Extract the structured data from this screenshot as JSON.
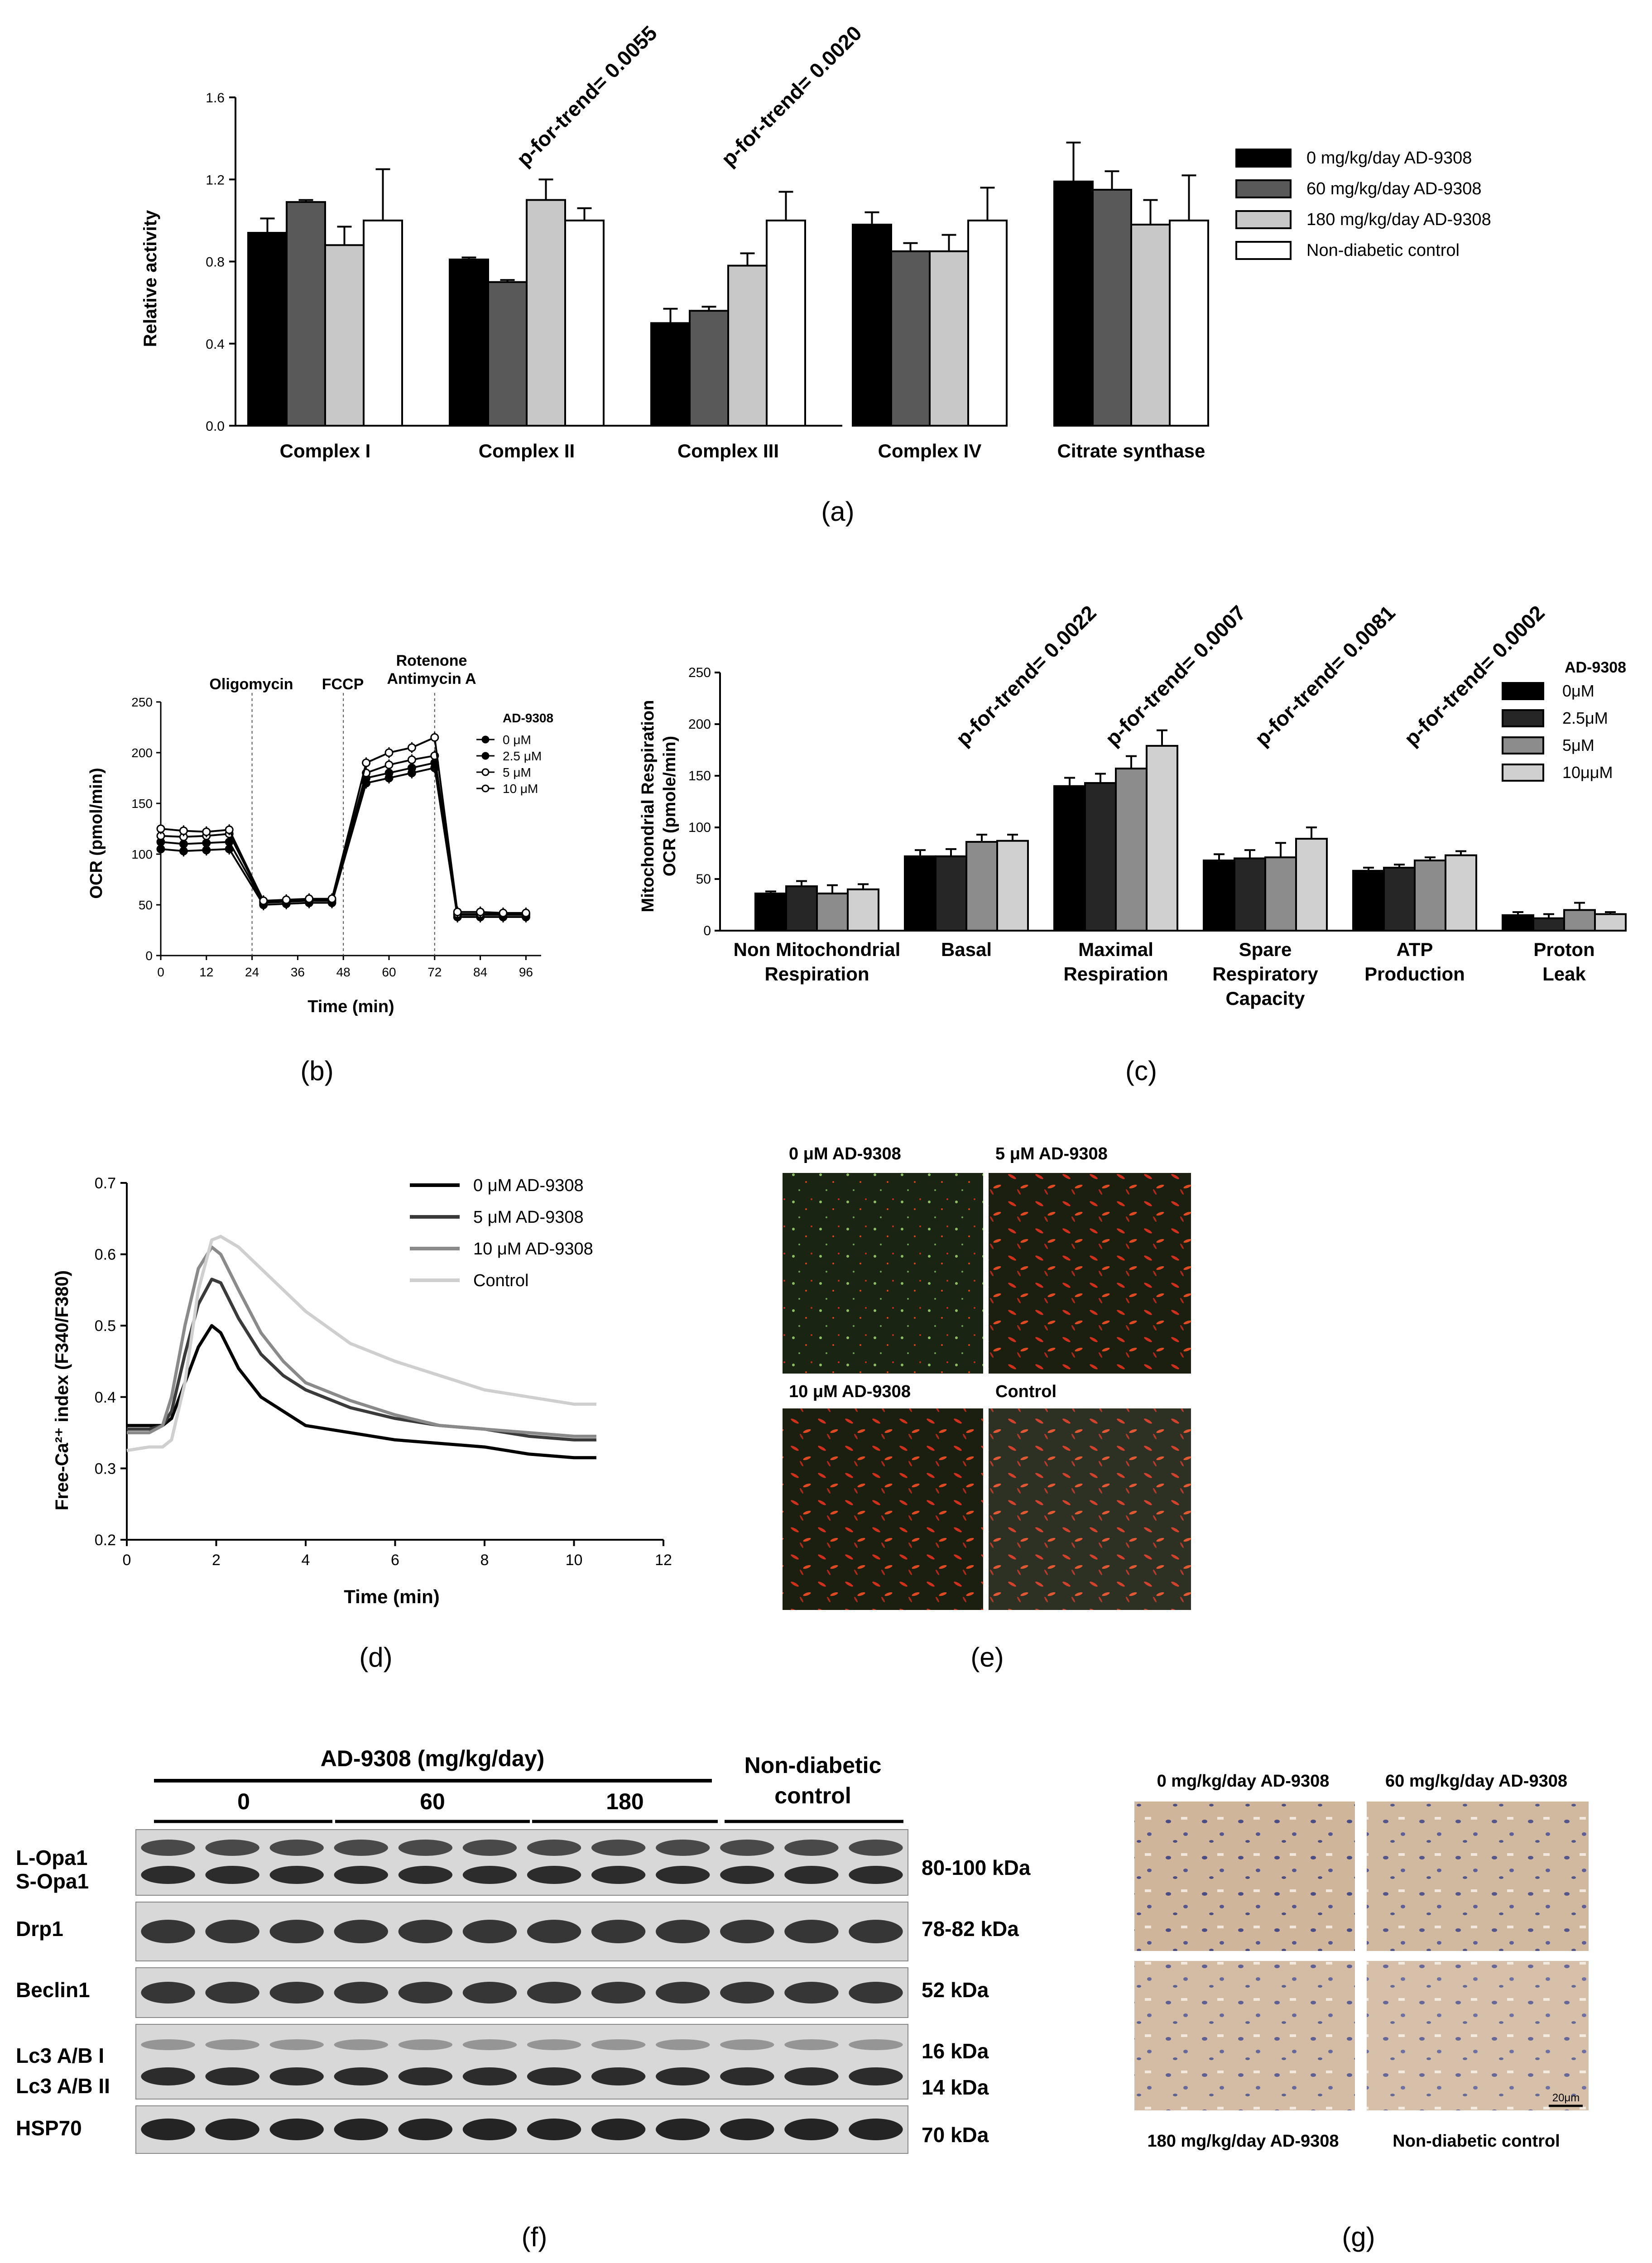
{
  "captions": {
    "a": "(a)",
    "b": "(b)",
    "c": "(c)",
    "d": "(d)",
    "e": "(e)",
    "f": "(f)",
    "g": "(g)"
  },
  "colors": {
    "black": "#000000",
    "dark_gray": "#595959",
    "light_gray": "#c8c8c8",
    "white": "#ffffff",
    "mid_gray": "#8c8c8c",
    "lightest_gray": "#d0d0d0"
  },
  "chart_data": [
    {
      "type": "bar",
      "ylabel": "Relative activity",
      "ylim": [
        0,
        1.6
      ],
      "yticks": [
        "0.0",
        "0.4",
        "0.8",
        "1.2",
        "1.6"
      ],
      "categories": [
        "Complex I",
        "Complex II",
        "Complex III",
        "Complex IV",
        "Citrate synthase"
      ],
      "series": [
        {
          "name": "0 mg/kg/day AD-9308",
          "values": [
            0.94,
            0.81,
            0.5,
            0.98,
            1.19
          ],
          "errors": [
            0.07,
            0.01,
            0.07,
            0.06,
            0.19
          ]
        },
        {
          "name": "60 mg/kg/day AD-9308",
          "values": [
            1.09,
            0.7,
            0.56,
            0.85,
            1.15
          ],
          "errors": [
            0.01,
            0.01,
            0.02,
            0.04,
            0.09
          ]
        },
        {
          "name": "180 mg/kg/day AD-9308",
          "values": [
            0.88,
            1.1,
            0.78,
            0.85,
            0.98
          ],
          "errors": [
            0.09,
            0.1,
            0.06,
            0.08,
            0.12
          ]
        },
        {
          "name": "Non-diabetic control",
          "values": [
            1.0,
            1.0,
            1.0,
            1.0,
            1.0
          ],
          "errors": [
            0.25,
            0.06,
            0.14,
            0.16,
            0.22
          ]
        }
      ],
      "annotations": [
        "p-for-trend= 0.0055",
        "p-for-trend= 0.0020"
      ],
      "legend": "top-right"
    },
    {
      "type": "line",
      "xlabel": "Time (min)",
      "ylabel": "OCR (pmol/min)",
      "xlim": [
        0,
        100
      ],
      "ylim": [
        0,
        250
      ],
      "xticks": [
        "0",
        "12",
        "24",
        "36",
        "48",
        "60",
        "72",
        "84",
        "96"
      ],
      "yticks": [
        "0",
        "50",
        "100",
        "150",
        "200",
        "250"
      ],
      "x": [
        0,
        6,
        12,
        18,
        27,
        33,
        39,
        45,
        54,
        60,
        66,
        72,
        78,
        84,
        90,
        96
      ],
      "injections": [
        24,
        48,
        72
      ],
      "annotations": [
        "Oligomycin",
        "FCCP",
        "Rotenone",
        "Antimycin A"
      ],
      "legend_title": "AD-9308",
      "series": [
        {
          "name": "0 μM",
          "values": [
            105,
            103,
            104,
            105,
            50,
            51,
            52,
            52,
            170,
            175,
            180,
            185,
            38,
            38,
            38,
            38
          ]
        },
        {
          "name": "2.5 μM",
          "values": [
            112,
            110,
            111,
            112,
            52,
            53,
            54,
            54,
            175,
            180,
            185,
            190,
            40,
            40,
            40,
            40
          ]
        },
        {
          "name": "5 μM",
          "values": [
            118,
            117,
            118,
            120,
            53,
            54,
            55,
            55,
            180,
            188,
            193,
            197,
            41,
            41,
            41,
            41
          ]
        },
        {
          "name": "10 μM",
          "values": [
            125,
            123,
            122,
            124,
            54,
            55,
            56,
            56,
            190,
            200,
            205,
            215,
            43,
            43,
            42,
            42
          ]
        }
      ]
    },
    {
      "type": "bar",
      "ylabel_lines": [
        "Mitochondrial Respiration",
        "OCR (pmole/min)"
      ],
      "ylim": [
        0,
        250
      ],
      "yticks": [
        "0",
        "50",
        "100",
        "150",
        "200",
        "250"
      ],
      "categories": [
        [
          "Non Mitochondrial",
          "Respiration"
        ],
        [
          "Basal"
        ],
        [
          "Maximal",
          "Respiration"
        ],
        [
          "Spare",
          "Respiratory",
          "Capacity"
        ],
        [
          "ATP",
          "Production"
        ],
        [
          "Proton",
          "Leak"
        ]
      ],
      "legend_title": "AD-9308",
      "series": [
        {
          "name": "0μM",
          "values": [
            36,
            72,
            140,
            68,
            58,
            15
          ],
          "errors": [
            2,
            6,
            8,
            6,
            3,
            3
          ]
        },
        {
          "name": "2.5μM",
          "values": [
            43,
            72,
            143,
            70,
            61,
            12
          ],
          "errors": [
            5,
            7,
            9,
            8,
            3,
            4
          ]
        },
        {
          "name": "5μM",
          "values": [
            36,
            86,
            157,
            71,
            68,
            20
          ],
          "errors": [
            8,
            7,
            12,
            14,
            3,
            7
          ]
        },
        {
          "name": "10μμM",
          "values": [
            40,
            87,
            179,
            89,
            73,
            16
          ],
          "errors": [
            5,
            6,
            15,
            11,
            4,
            2
          ]
        }
      ],
      "annotations": [
        "p-for-trend= 0.0022",
        "p-for-trend= 0.0007",
        "p-for-trend= 0.0081",
        "p-for-trend= 0.0002"
      ],
      "legend": "top-right"
    },
    {
      "type": "line",
      "xlabel": "Time (min)",
      "ylabel": "Free-Ca²⁺ index (F340/F380)",
      "xlim": [
        0,
        12
      ],
      "ylim": [
        0.2,
        0.7
      ],
      "xticks": [
        "0",
        "2",
        "4",
        "6",
        "8",
        "10",
        "12"
      ],
      "yticks": [
        "0.2",
        "0.3",
        "0.4",
        "0.5",
        "0.6",
        "0.7"
      ],
      "x": [
        0,
        0.5,
        0.8,
        1.0,
        1.3,
        1.6,
        1.9,
        2.1,
        2.5,
        3.0,
        3.5,
        4.0,
        5.0,
        6.0,
        7.0,
        8.0,
        9.0,
        10.0,
        10.5
      ],
      "series": [
        {
          "name": "0 μM AD-9308",
          "values": [
            0.36,
            0.36,
            0.36,
            0.37,
            0.42,
            0.47,
            0.5,
            0.49,
            0.44,
            0.4,
            0.38,
            0.36,
            0.35,
            0.34,
            0.335,
            0.33,
            0.32,
            0.315,
            0.315
          ]
        },
        {
          "name": "5 μM AD-9308",
          "values": [
            0.355,
            0.355,
            0.36,
            0.38,
            0.46,
            0.53,
            0.565,
            0.56,
            0.51,
            0.46,
            0.43,
            0.41,
            0.385,
            0.37,
            0.36,
            0.355,
            0.345,
            0.34,
            0.34
          ]
        },
        {
          "name": "10 μM AD-9308",
          "values": [
            0.35,
            0.35,
            0.36,
            0.4,
            0.5,
            0.58,
            0.61,
            0.6,
            0.55,
            0.49,
            0.45,
            0.42,
            0.395,
            0.375,
            0.36,
            0.355,
            0.35,
            0.345,
            0.345
          ]
        },
        {
          "name": "Control",
          "values": [
            0.325,
            0.33,
            0.33,
            0.34,
            0.42,
            0.55,
            0.62,
            0.625,
            0.61,
            0.58,
            0.55,
            0.52,
            0.475,
            0.45,
            0.43,
            0.41,
            0.4,
            0.39,
            0.39
          ]
        }
      ],
      "legend": "top-right"
    }
  ],
  "panel_e": {
    "labels": [
      "0 μM AD-9308",
      "5 μM AD-9308",
      "10 μM AD-9308",
      "Control"
    ]
  },
  "panel_f": {
    "header": "AD-9308 (mg/kg/day)",
    "doses": [
      "0",
      "60",
      "180"
    ],
    "control_lines": [
      "Non-diabetic",
      "control"
    ],
    "left_labels": [
      "L-Opa1",
      "S-Opa1",
      "Drp1",
      "Beclin1",
      "Lc3 A/B I",
      "Lc3 A/B II",
      "HSP70"
    ],
    "right_labels": [
      "80-100 kDa",
      "78-82 kDa",
      "52 kDa",
      "16 kDa",
      "14 kDa",
      "70 kDa"
    ],
    "lanes": 12
  },
  "panel_g": {
    "labels": [
      "0 mg/kg/day AD-9308",
      "60 mg/kg/day AD-9308",
      "180 mg/kg/day AD-9308",
      "Non-diabetic control"
    ],
    "scale_bar": "20μm"
  }
}
